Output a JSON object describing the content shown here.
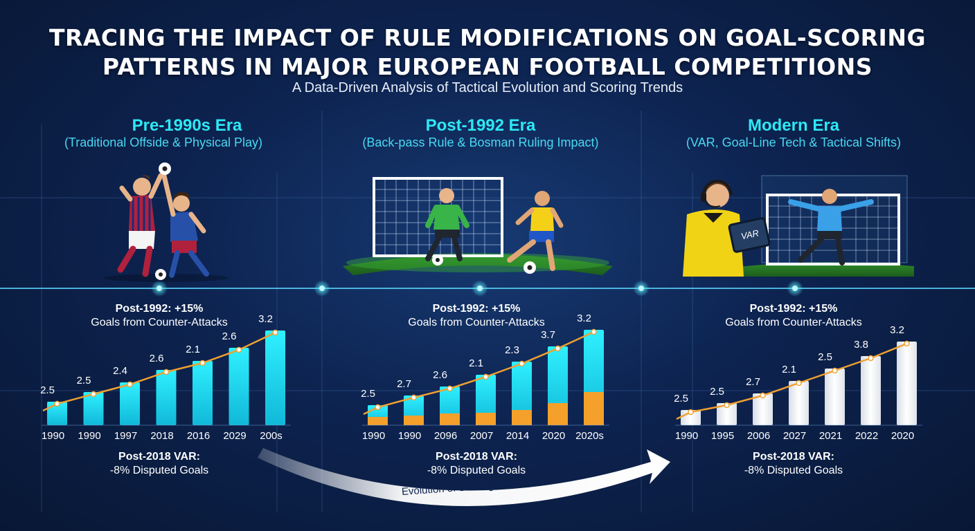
{
  "header": {
    "title_line1": "TRACING THE IMPACT OF RULE MODIFICATIONS ON GOAL-SCORING",
    "title_line2": "PATTERNS IN MAJOR EUROPEAN FOOTBALL COMPETITIONS",
    "subtitle": "A Data-Driven Analysis of Tactical Evolution and Scoring Trends"
  },
  "eras": [
    {
      "name": "Pre-1990s Era",
      "desc": "(Traditional Offside & Physical Play)",
      "note_top_title": "Post-1992: +15%",
      "note_top_text": "Goals from Counter-Attacks",
      "note_bottom_title": "Post-2018 VAR:",
      "note_bottom_text": "-8% Disputed Goals"
    },
    {
      "name": "Post-1992 Era",
      "desc": "(Back-pass Rule & Bosman Ruling Impact)",
      "note_top_title": "Post-1992: +15%",
      "note_top_text": "Goals from Counter-Attacks",
      "note_bottom_title": "Post-2018 VAR:",
      "note_bottom_text": "-8% Disputed Goals"
    },
    {
      "name": "Modern Era",
      "desc": "(VAR, Goal-Line Tech & Tactical Shifts)",
      "note_top_title": "Post-1992: +15%",
      "note_top_text": "Goals from Counter-Attacks",
      "note_bottom_title": "Post-2018 VAR:",
      "note_bottom_text": "-8% Disputed Goals"
    }
  ],
  "flow_arrow_label": "Evolution of Scoring Patterns",
  "var_tablet_label": "VAR",
  "colors": {
    "cyan": "#22e3f2",
    "orange": "#f5a02a",
    "white_bar": "#f2f4f7",
    "trend_line": "#f0a030",
    "accent_text": "#2ee8f5"
  },
  "chart_data": [
    {
      "type": "bar",
      "categories": [
        "1990",
        "1990",
        "1997",
        "2018",
        "2016",
        "2029",
        "200s"
      ],
      "values": [
        2.5,
        2.5,
        2.4,
        2.6,
        2.1,
        2.6,
        3.2
      ],
      "labels": [
        "2.5",
        "2.5",
        "2.4",
        "2.6",
        "2.1",
        "2.6",
        "3.2"
      ],
      "trend_line": true,
      "bar_color": "#22e3f2"
    },
    {
      "type": "bar",
      "categories": [
        "1990",
        "1990",
        "2096",
        "2007",
        "2014",
        "2020",
        "2020s"
      ],
      "values": [
        2.5,
        2.7,
        2.6,
        2.1,
        2.3,
        3.7,
        3.2
      ],
      "labels": [
        "2.5",
        "2.7",
        "2.6",
        "2.1",
        "2.3",
        "3.7",
        "3.2"
      ],
      "trend_line": true,
      "bar_color": "#22e3f2",
      "segment_color": "#f5a02a"
    },
    {
      "type": "bar",
      "categories": [
        "1990",
        "1995",
        "2006",
        "2027",
        "2021",
        "2022",
        "2020"
      ],
      "values": [
        2.5,
        2.5,
        2.7,
        2.1,
        2.5,
        3.8,
        3.2
      ],
      "labels": [
        "2.5",
        "2.5",
        "2.7",
        "2.1",
        "2.5",
        "3.8",
        "3.2"
      ],
      "trend_line": true,
      "bar_color": "#f2f4f7"
    }
  ]
}
